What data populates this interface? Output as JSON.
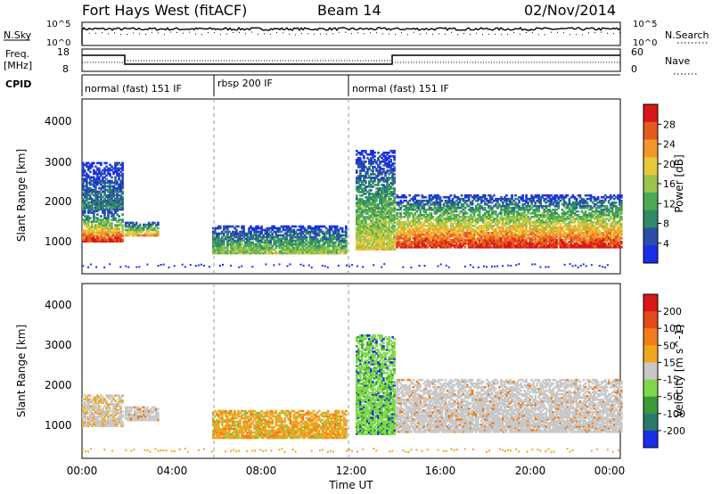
{
  "header": {
    "title": "Fort Hays West (fitACF)",
    "beam": "Beam 14",
    "date": "02/Nov/2014"
  },
  "panels": {
    "nsky_label": "N.Sky",
    "nsky_ticks": [
      "10^5",
      "10^0"
    ],
    "nsearch_label": "N.Search",
    "nsearch_ticks": [
      "10^5",
      "10^0"
    ],
    "freq_label": "Freq.",
    "freq_unit": "[MHz]",
    "freq_ticks": [
      "18",
      "8"
    ],
    "nave_label": "Nave",
    "nave_ticks": [
      "60",
      "0"
    ],
    "cpid_label": "CPID",
    "cpid_segments": [
      {
        "label": "normal (fast) 151 IF",
        "start": 0,
        "end": 6
      },
      {
        "label": "rbsp 200 IF",
        "start": 6,
        "end": 12
      },
      {
        "label": "normal (fast) 151 IF",
        "start": 12,
        "end": 24
      }
    ]
  },
  "chart_data": [
    {
      "type": "heatmap",
      "name": "power",
      "ylabel": "Slant Range [km]",
      "ylim": [
        200,
        4600
      ],
      "xlim": [
        0,
        24
      ],
      "yticks": [
        "1000",
        "2000",
        "3000",
        "4000"
      ],
      "colorbar": {
        "label": "Power [dB]",
        "range": [
          0,
          32
        ],
        "ticks": [
          "4",
          "8",
          "12",
          "16",
          "20",
          "24",
          "28"
        ],
        "colors": [
          "#1a2ee8",
          "#2a4fa8",
          "#2f8a66",
          "#4caa55",
          "#9cc44a",
          "#e7c83a",
          "#f5962a",
          "#e65a1e",
          "#d81818"
        ]
      },
      "regions": [
        {
          "x": [
            0.0,
            1.8
          ],
          "y": [
            1000,
            1800
          ],
          "level": "high"
        },
        {
          "x": [
            0.0,
            1.8
          ],
          "y": [
            1800,
            3000
          ],
          "level": "low"
        },
        {
          "x": [
            1.9,
            3.4
          ],
          "y": [
            1150,
            1500
          ],
          "level": "mid"
        },
        {
          "x": [
            5.8,
            11.8
          ],
          "y": [
            700,
            1400
          ],
          "level": "low-mid"
        },
        {
          "x": [
            12.2,
            13.9
          ],
          "y": [
            800,
            3300
          ],
          "level": "mixed"
        },
        {
          "x": [
            14.0,
            24.0
          ],
          "y": [
            850,
            2200
          ],
          "level": "high"
        }
      ]
    },
    {
      "type": "heatmap",
      "name": "velocity",
      "ylabel": "Slant Range [km]",
      "ylim": [
        200,
        4600
      ],
      "xlim": [
        0,
        24
      ],
      "xlabel": "Time UT",
      "xticks": [
        "00:00",
        "04:00",
        "08:00",
        "12:00",
        "16:00",
        "20:00",
        "00:00"
      ],
      "yticks": [
        "1000",
        "2000",
        "3000",
        "4000"
      ],
      "colorbar": {
        "label": "Velocity [m s^-1]",
        "ticks": [
          "200",
          "100",
          "50",
          "15",
          "-15",
          "-50",
          "-100",
          "-200"
        ],
        "colors": [
          "#1a2ee8",
          "#2a7a6a",
          "#3a9a3a",
          "#7fd84a",
          "#c8c8c8",
          "#f2a51e",
          "#f07c1a",
          "#e24a1a",
          "#d81818"
        ]
      },
      "regions": [
        {
          "x": [
            0.0,
            1.8
          ],
          "y": [
            1000,
            1800
          ],
          "level": "gray-orange"
        },
        {
          "x": [
            1.9,
            3.4
          ],
          "y": [
            1150,
            1500
          ],
          "level": "gray"
        },
        {
          "x": [
            5.8,
            11.8
          ],
          "y": [
            700,
            1400
          ],
          "level": "orange-green"
        },
        {
          "x": [
            12.2,
            13.9
          ],
          "y": [
            800,
            3300
          ],
          "level": "green-blue"
        },
        {
          "x": [
            14.0,
            24.0
          ],
          "y": [
            850,
            2200
          ],
          "level": "gray"
        }
      ]
    }
  ]
}
